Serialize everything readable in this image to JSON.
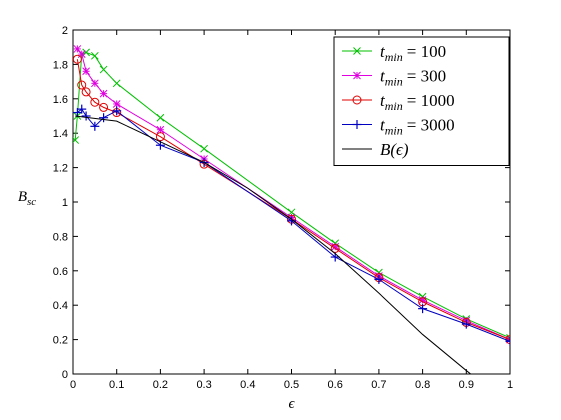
{
  "chart_data": {
    "type": "line",
    "xlabel": "ϵ",
    "ylabel": "B",
    "ylabel_sub": "sc",
    "xlim": [
      0,
      1
    ],
    "ylim": [
      0,
      2
    ],
    "x_ticks": [
      "0",
      "0.1",
      "0.2",
      "0.3",
      "0.4",
      "0.5",
      "0.6",
      "0.7",
      "0.8",
      "0.9",
      "1"
    ],
    "x_tick_values": [
      0,
      0.1,
      0.2,
      0.3,
      0.4,
      0.5,
      0.6,
      0.7,
      0.8,
      0.9,
      1
    ],
    "y_ticks": [
      "0",
      "0.2",
      "0.4",
      "0.6",
      "0.8",
      "1",
      "1.2",
      "1.4",
      "1.6",
      "1.8",
      "2"
    ],
    "y_tick_values": [
      0,
      0.2,
      0.4,
      0.6,
      0.8,
      1,
      1.2,
      1.4,
      1.6,
      1.8,
      2
    ],
    "grid": false,
    "legend_position": "top-right",
    "series": [
      {
        "name": "t_min = 100",
        "legend_var": "t",
        "legend_sub": "min",
        "legend_value": "= 100",
        "color": "#00c000",
        "marker": "x",
        "x": [
          0.005,
          0.01,
          0.02,
          0.03,
          0.05,
          0.07,
          0.1,
          0.2,
          0.3,
          0.5,
          0.6,
          0.7,
          0.8,
          0.9,
          1.0
        ],
        "y": [
          1.36,
          1.5,
          1.86,
          1.87,
          1.85,
          1.77,
          1.69,
          1.49,
          1.31,
          0.94,
          0.76,
          0.59,
          0.45,
          0.32,
          0.21
        ]
      },
      {
        "name": "t_min = 300",
        "legend_var": "t",
        "legend_sub": "min",
        "legend_value": "= 300",
        "color": "#e000e0",
        "marker": "star",
        "x": [
          0.01,
          0.02,
          0.03,
          0.05,
          0.07,
          0.1,
          0.2,
          0.3,
          0.5,
          0.6,
          0.7,
          0.8,
          0.9,
          1.0
        ],
        "y": [
          1.89,
          1.86,
          1.76,
          1.69,
          1.63,
          1.57,
          1.42,
          1.25,
          0.91,
          0.74,
          0.57,
          0.43,
          0.31,
          0.2
        ]
      },
      {
        "name": "t_min = 1000",
        "legend_var": "t",
        "legend_sub": "min",
        "legend_value": "= 1000",
        "color": "#e00000",
        "marker": "circle",
        "x": [
          0.01,
          0.02,
          0.03,
          0.05,
          0.07,
          0.1,
          0.2,
          0.3,
          0.5,
          0.6,
          0.7,
          0.8,
          0.9,
          1.0
        ],
        "y": [
          1.83,
          1.68,
          1.64,
          1.58,
          1.55,
          1.52,
          1.38,
          1.22,
          0.9,
          0.73,
          0.56,
          0.42,
          0.3,
          0.2
        ]
      },
      {
        "name": "t_min = 3000",
        "legend_var": "t",
        "legend_sub": "min",
        "legend_value": "= 3000",
        "color": "#0000c0",
        "marker": "plus",
        "x": [
          0.01,
          0.02,
          0.03,
          0.05,
          0.07,
          0.1,
          0.2,
          0.3,
          0.5,
          0.6,
          0.7,
          0.8,
          0.9,
          1.0
        ],
        "y": [
          1.52,
          1.54,
          1.5,
          1.44,
          1.49,
          1.53,
          1.33,
          1.23,
          0.89,
          0.68,
          0.55,
          0.38,
          0.29,
          0.19
        ]
      },
      {
        "name": "B(ϵ)",
        "legend_label": "B(ϵ)",
        "color": "#000000",
        "marker": "none",
        "x": [
          0.005,
          0.1,
          0.2,
          0.3,
          0.4,
          0.5,
          0.6,
          0.7,
          0.8,
          0.9,
          0.92
        ],
        "y": [
          1.5,
          1.47,
          1.35,
          1.23,
          1.08,
          0.9,
          0.7,
          0.47,
          0.23,
          0.02,
          -0.02
        ]
      }
    ]
  }
}
